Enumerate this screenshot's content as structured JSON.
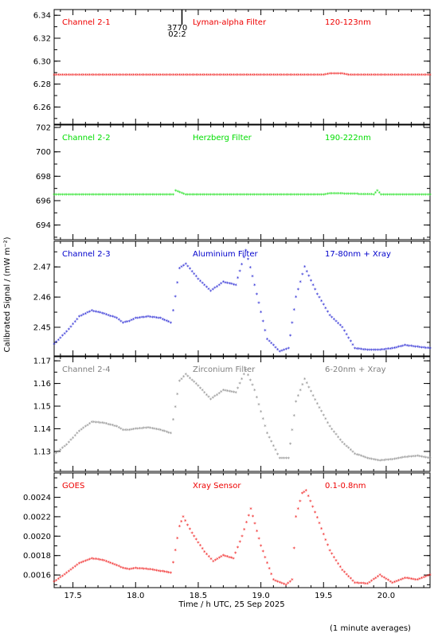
{
  "colors": {
    "red": "#ee0000",
    "green": "#00dd00",
    "blue": "#0000cc",
    "grey": "#808080",
    "goes": "#ee0000",
    "axis": "#000000"
  },
  "xaxis": {
    "label": "Time / h UTC, 25 Sep 2025",
    "range": [
      17.35,
      20.35
    ],
    "ticks": [
      "17.5",
      "18.0",
      "18.5",
      "19.0",
      "19.5",
      "20.0"
    ],
    "tick_values": [
      17.5,
      18.0,
      18.5,
      19.0,
      19.5,
      20.0
    ]
  },
  "ylabel": "Calibrated Signal / (mW m⁻²)",
  "footnote": "(1 minute averages)",
  "marker": {
    "x": 18.37,
    "line1": "3770",
    "line2": "02:2"
  },
  "chart_data": [
    {
      "type": "scatter",
      "channel": "Channel 2-1",
      "filter": "Lyman-alpha Filter",
      "band": "120-123nm",
      "color_key": "red",
      "ylim": [
        6.245,
        6.345
      ],
      "yticks": [
        "6.26",
        "6.28",
        "6.30",
        "6.32",
        "6.34"
      ],
      "ytick_values": [
        6.26,
        6.28,
        6.3,
        6.32,
        6.34
      ],
      "x": [
        17.35,
        18.0,
        18.5,
        19.0,
        19.5,
        19.55,
        19.6,
        19.65,
        19.7,
        20.0,
        20.35
      ],
      "y": [
        6.288,
        6.288,
        6.288,
        6.288,
        6.288,
        6.289,
        6.289,
        6.289,
        6.288,
        6.288,
        6.288
      ]
    },
    {
      "type": "scatter",
      "channel": "Channel 2-2",
      "filter": "Herzberg Filter",
      "band": "190-222nm",
      "color_key": "green",
      "ylim": [
        692.8,
        702.2
      ],
      "yticks": [
        "694",
        "696",
        "698",
        "700",
        "702"
      ],
      "ytick_values": [
        694,
        696,
        698,
        700,
        702
      ],
      "x": [
        17.35,
        17.9,
        18.0,
        18.3,
        18.32,
        18.4,
        19.0,
        19.5,
        19.55,
        19.9,
        19.93,
        19.96,
        20.35
      ],
      "y": [
        696.5,
        696.5,
        696.5,
        696.5,
        696.8,
        696.5,
        696.5,
        696.5,
        696.6,
        696.5,
        696.8,
        696.5,
        696.5
      ]
    },
    {
      "type": "scatter",
      "channel": "Channel 2-3",
      "filter": "Aluminium Filter",
      "band": "17-80nm + Xray",
      "color_key": "blue",
      "ylim": [
        2.4405,
        2.4785
      ],
      "yticks": [
        "2.45",
        "2.46",
        "2.47"
      ],
      "ytick_values": [
        2.45,
        2.46,
        2.47
      ],
      "x": [
        17.35,
        17.45,
        17.55,
        17.65,
        17.75,
        17.85,
        17.9,
        17.95,
        18.0,
        18.1,
        18.2,
        18.28,
        18.3,
        18.35,
        18.4,
        18.5,
        18.6,
        18.7,
        18.8,
        18.88,
        18.95,
        19.05,
        19.15,
        19.22,
        19.28,
        19.35,
        19.45,
        19.55,
        19.65,
        19.75,
        19.85,
        19.95,
        20.05,
        20.15,
        20.25,
        20.35
      ],
      "y": [
        2.4445,
        2.4485,
        2.4535,
        2.4555,
        2.4545,
        2.453,
        2.4515,
        2.452,
        2.453,
        2.4535,
        2.453,
        2.4515,
        2.4555,
        2.4695,
        2.471,
        2.466,
        2.462,
        2.465,
        2.464,
        2.4755,
        2.464,
        2.446,
        2.442,
        2.443,
        2.46,
        2.47,
        2.461,
        2.454,
        2.45,
        2.443,
        2.4425,
        2.4425,
        2.443,
        2.444,
        2.4435,
        2.443
      ]
    },
    {
      "type": "scatter",
      "channel": "Channel 2-4",
      "filter": "Zirconium Filter",
      "band": "6-20nm + Xray",
      "color_key": "grey",
      "ylim": [
        1.1212,
        1.1718
      ],
      "yticks": [
        "1.13",
        "1.14",
        "1.15",
        "1.16",
        "1.17"
      ],
      "ytick_values": [
        1.13,
        1.14,
        1.15,
        1.16,
        1.17
      ],
      "x": [
        17.35,
        17.45,
        17.55,
        17.65,
        17.75,
        17.85,
        17.9,
        17.95,
        18.0,
        18.1,
        18.2,
        18.28,
        18.3,
        18.35,
        18.4,
        18.5,
        18.6,
        18.7,
        18.8,
        18.88,
        18.95,
        19.05,
        19.15,
        19.22,
        19.28,
        19.35,
        19.45,
        19.55,
        19.65,
        19.75,
        19.85,
        19.95,
        20.05,
        20.15,
        20.25,
        20.35
      ],
      "y": [
        1.1285,
        1.133,
        1.139,
        1.143,
        1.1425,
        1.141,
        1.1395,
        1.1395,
        1.14,
        1.1405,
        1.1395,
        1.138,
        1.144,
        1.161,
        1.164,
        1.159,
        1.153,
        1.157,
        1.156,
        1.166,
        1.157,
        1.138,
        1.127,
        1.127,
        1.152,
        1.162,
        1.151,
        1.141,
        1.134,
        1.129,
        1.127,
        1.126,
        1.1265,
        1.1275,
        1.128,
        1.127
      ]
    },
    {
      "type": "scatter",
      "channel": "GOES",
      "filter": "Xray Sensor",
      "band": "0.1-0.8nm",
      "color_key": "goes",
      "ylim": [
        0.00147,
        0.00265
      ],
      "yticks": [
        "0.0016",
        "0.0018",
        "0.0020",
        "0.0022",
        "0.0024"
      ],
      "ytick_values": [
        0.0016,
        0.0018,
        0.002,
        0.0022,
        0.0024
      ],
      "x": [
        17.35,
        17.45,
        17.55,
        17.65,
        17.75,
        17.85,
        17.9,
        17.95,
        18.0,
        18.1,
        18.2,
        18.28,
        18.3,
        18.35,
        18.38,
        18.45,
        18.55,
        18.62,
        18.7,
        18.78,
        18.85,
        18.92,
        19.0,
        19.1,
        19.2,
        19.25,
        19.28,
        19.33,
        19.36,
        19.45,
        19.55,
        19.65,
        19.75,
        19.85,
        19.95,
        20.05,
        20.15,
        20.25,
        20.35
      ],
      "y": [
        0.00153,
        0.00162,
        0.00172,
        0.00177,
        0.00175,
        0.0017,
        0.00167,
        0.00166,
        0.00167,
        0.00166,
        0.00164,
        0.00162,
        0.00173,
        0.0021,
        0.0022,
        0.00203,
        0.00184,
        0.00174,
        0.0018,
        0.00177,
        0.002,
        0.00228,
        0.0019,
        0.00155,
        0.0015,
        0.00155,
        0.0022,
        0.00244,
        0.00247,
        0.00219,
        0.00185,
        0.00165,
        0.00152,
        0.00151,
        0.0016,
        0.00152,
        0.00157,
        0.00155,
        0.0016
      ]
    }
  ]
}
